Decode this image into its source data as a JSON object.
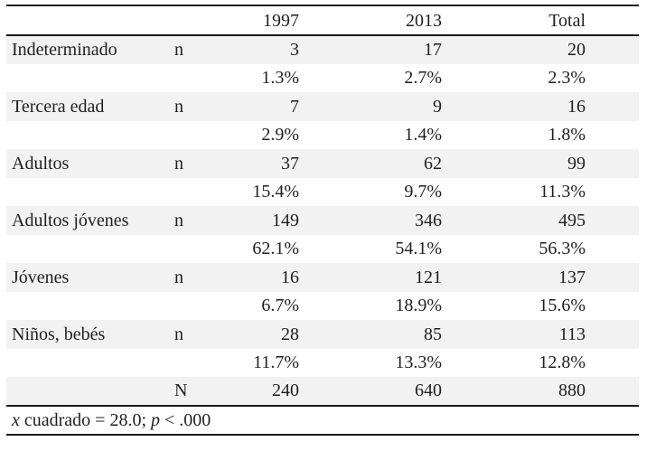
{
  "style": {
    "stripe_color": "#f2f2f2",
    "border_color": "#1a1a1a",
    "text_color": "#1f1f1f"
  },
  "table": {
    "headers": [
      "",
      "",
      "1997",
      "2013",
      "Total"
    ],
    "rows": [
      {
        "shaded": true,
        "cells": [
          "Indeterminado",
          "n",
          "3",
          "17",
          "20"
        ]
      },
      {
        "shaded": false,
        "cells": [
          "",
          "",
          "1.3%",
          "2.7%",
          "2.3%"
        ]
      },
      {
        "shaded": true,
        "cells": [
          "Tercera edad",
          "n",
          "7",
          "9",
          "16"
        ]
      },
      {
        "shaded": false,
        "cells": [
          "",
          "",
          "2.9%",
          "1.4%",
          "1.8%"
        ]
      },
      {
        "shaded": true,
        "cells": [
          "Adultos",
          "n",
          "37",
          "62",
          "99"
        ]
      },
      {
        "shaded": false,
        "cells": [
          "",
          "",
          "15.4%",
          "9.7%",
          "11.3%"
        ]
      },
      {
        "shaded": true,
        "cells": [
          "Adultos jóvenes",
          "n",
          "149",
          "346",
          "495"
        ]
      },
      {
        "shaded": false,
        "cells": [
          "",
          "",
          "62.1%",
          "54.1%",
          "56.3%"
        ]
      },
      {
        "shaded": true,
        "cells": [
          "Jóvenes",
          "n",
          "16",
          "121",
          "137"
        ]
      },
      {
        "shaded": false,
        "cells": [
          "",
          "",
          "6.7%",
          "18.9%",
          "15.6%"
        ]
      },
      {
        "shaded": true,
        "cells": [
          "Niños, bebés",
          "n",
          "28",
          "85",
          "113"
        ]
      },
      {
        "shaded": false,
        "cells": [
          "",
          "",
          "11.7%",
          "13.3%",
          "12.8%"
        ]
      },
      {
        "shaded": true,
        "cells": [
          "",
          "N",
          "240",
          "640",
          "880"
        ]
      }
    ],
    "footnote": {
      "chi_symbol": "x",
      "chi_text": " cuadrado = 28.0; ",
      "p_symbol": "p",
      "p_text": " < .000"
    }
  }
}
